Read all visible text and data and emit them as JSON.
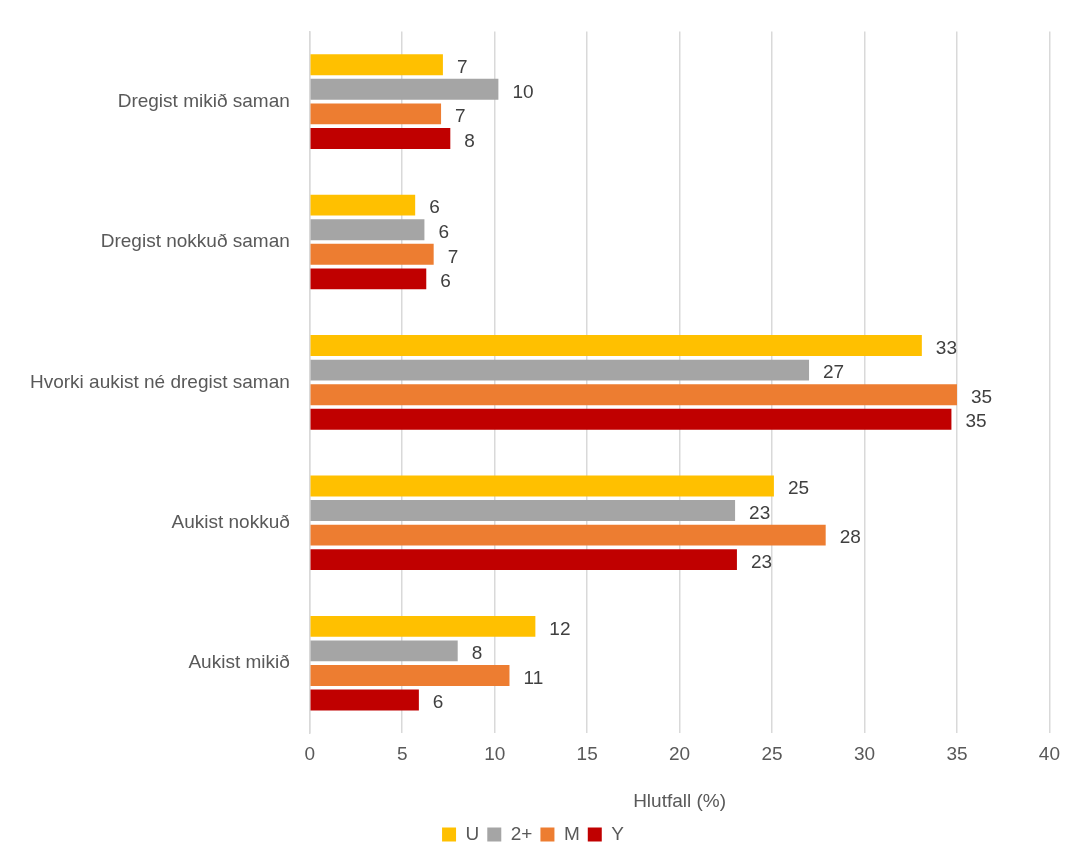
{
  "chart_data": {
    "type": "bar",
    "orientation": "horizontal",
    "xlabel": "Hlutfall (%)",
    "categories": [
      "Dregist mikið saman",
      "Dregist nokkuð saman",
      "Hvorki aukist né dregist saman",
      "Aukist nokkuð",
      "Aukist mikið"
    ],
    "series": [
      {
        "name": "U",
        "color": "#ffc000",
        "values": [
          7.2,
          5.7,
          33.1,
          25.1,
          12.2
        ],
        "value_labels": [
          "7",
          "6",
          "33",
          "25",
          "12"
        ]
      },
      {
        "name": "2+",
        "color": "#a5a5a5",
        "values": [
          10.2,
          6.2,
          27.0,
          23.0,
          8.0
        ],
        "value_labels": [
          "10",
          "6",
          "27",
          "23",
          "8"
        ]
      },
      {
        "name": "M",
        "color": "#ed7d31",
        "values": [
          7.1,
          6.7,
          35.0,
          27.9,
          10.8
        ],
        "value_labels": [
          "7",
          "7",
          "35",
          "28",
          "11"
        ]
      },
      {
        "name": "Y",
        "color": "#c00000",
        "values": [
          7.6,
          6.3,
          34.7,
          23.1,
          5.9
        ],
        "value_labels": [
          "8",
          "6",
          "35",
          "23",
          "6"
        ]
      }
    ],
    "xlim": [
      0,
      40
    ],
    "xticks": [
      0,
      5,
      10,
      15,
      20,
      25,
      30,
      35,
      40
    ],
    "grid": "x",
    "legend": "bottom"
  }
}
